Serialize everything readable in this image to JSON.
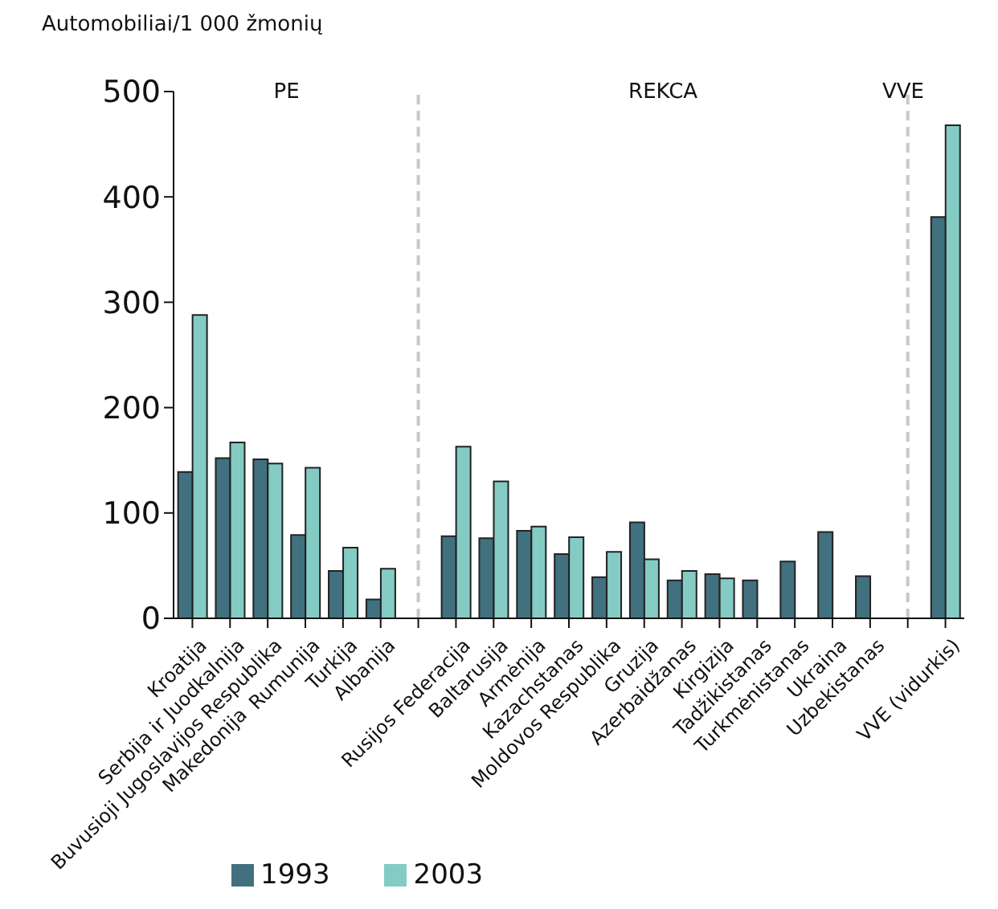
{
  "chart_data": {
    "type": "bar",
    "ylabel": "Automobiliai/1 000 žmonių",
    "categories": [
      "Kroatija",
      "Serbija ir Juodkalnija",
      "Buvusioji Jugoslavijos Respublika Makedonija",
      "Rumunija",
      "Turkija",
      "Albanija",
      null,
      "Rusijos Federacija",
      "Baltarusija",
      "Armėnija",
      "Kazachstanas",
      "Moldovos Respublika",
      "Gruzija",
      "Azerbaidžanas",
      "Kirgizija",
      "Tadžikistanas",
      "Turkmėnistanas",
      "Ukraina",
      "Uzbekistanas",
      null,
      "VVE (vidurkis)"
    ],
    "series": [
      {
        "name": "1993",
        "color": "#41707f",
        "values": [
          139,
          152,
          151,
          79,
          45,
          18,
          null,
          78,
          76,
          83,
          61,
          39,
          91,
          36,
          42,
          36,
          54,
          82,
          40,
          null,
          381
        ]
      },
      {
        "name": "2003",
        "color": "#84cbc4",
        "values": [
          288,
          167,
          147,
          143,
          67,
          47,
          null,
          163,
          130,
          87,
          77,
          63,
          56,
          45,
          38,
          null,
          null,
          null,
          null,
          null,
          468
        ]
      }
    ],
    "annotations": [
      "PE",
      "REKCA",
      "VVE"
    ],
    "ylim": [
      0,
      500
    ],
    "yticks": [
      0,
      100,
      200,
      300,
      400,
      500
    ],
    "grid": false,
    "legend": "bottom left"
  }
}
